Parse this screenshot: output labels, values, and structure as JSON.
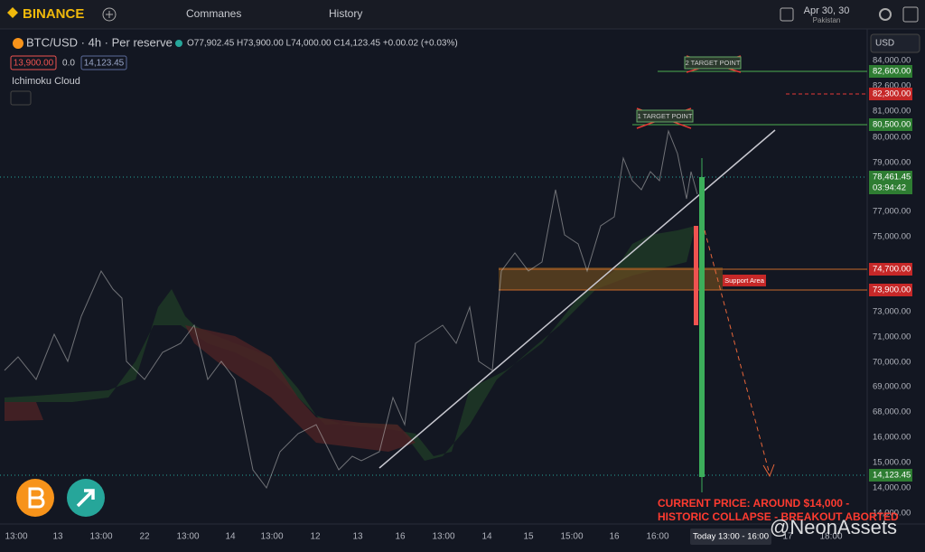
{
  "toolbar": {
    "logo": "BINANCE",
    "items": [
      "Commanes",
      "History"
    ],
    "date": "Apr 30, 30",
    "location": "Pakistan"
  },
  "header": {
    "symbol": "BTC/USD · 4h · Per reserve",
    "ohlc": "O77,902.45 H73,900.00 L74,000.00 C14,123.45 +0.00.02 (+0.03%)",
    "bid": "13,900.00",
    "spread": "0.0",
    "ask": "14,123.45",
    "indicator": "Ichimoku Cloud",
    "currency": "USD"
  },
  "price_axis": {
    "labels": [
      "84,000.00",
      "82,600.00",
      "81,000.00",
      "80,000.00",
      "79,000.00",
      "77,000.00",
      "75,000.00",
      "73,000.00",
      "71,000.00",
      "70,000.00",
      "69,000.00",
      "68,000.00",
      "16,000.00",
      "15,000.00",
      "14,000.00",
      "14,000.00"
    ],
    "badges": [
      "82,600.00",
      "82,300.00",
      "80,500.00",
      "78,461.45",
      "03:94:42",
      "74,700.00",
      "73,900.00",
      "14,123.45"
    ]
  },
  "time_axis": {
    "labels": [
      "13:00",
      "13",
      "13:00",
      "22",
      "13:00",
      "14",
      "13:00",
      "12",
      "13",
      "16",
      "13:00",
      "14",
      "15",
      "15:00",
      "16",
      "16:00",
      "17",
      "18:00"
    ],
    "today": "Today 13:00 - 16:00"
  },
  "annotations": {
    "target2": "2 TARGET POINT",
    "target1": "1 TARGET POINT",
    "support": "Support Area",
    "caption": [
      "CURRENT PRICE: AROUND $14,000 -",
      "HISTORIC COLLAPSE - BREAKOUT ABORTED"
    ],
    "watermark": "@NeonAssets"
  }
}
